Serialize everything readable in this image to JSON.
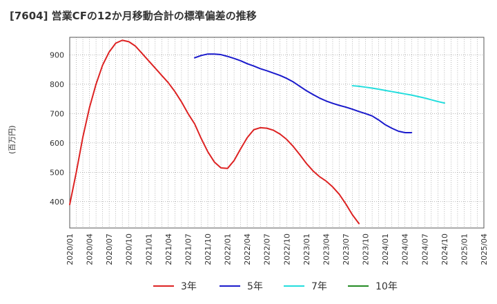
{
  "title": "[7604]  営業CFの12か月移動合計の標準偏差の推移",
  "chart_data": {
    "type": "line",
    "title": "[7604]  営業CFの12か月移動合計の標準偏差の推移",
    "ylabel": "(百万円)",
    "xlabel": "",
    "ylim": [
      310,
      960
    ],
    "yticks": [
      400,
      500,
      600,
      700,
      800,
      900
    ],
    "xticks": [
      "2020/01",
      "2020/04",
      "2020/07",
      "2020/10",
      "2021/01",
      "2021/04",
      "2021/07",
      "2021/10",
      "2022/01",
      "2022/04",
      "2022/07",
      "2022/10",
      "2023/01",
      "2023/04",
      "2023/07",
      "2023/10",
      "2024/01",
      "2024/04",
      "2024/07",
      "2024/10",
      "2025/01",
      "2025/04"
    ],
    "grid": true,
    "legend_position": "bottom",
    "series": [
      {
        "name": "3年",
        "color": "#dd2222",
        "start": "2020/01",
        "values": [
          390,
          500,
          620,
          720,
          800,
          865,
          910,
          940,
          950,
          945,
          930,
          905,
          880,
          855,
          830,
          805,
          775,
          740,
          700,
          665,
          615,
          570,
          535,
          515,
          513,
          540,
          580,
          618,
          645,
          652,
          650,
          643,
          630,
          612,
          588,
          560,
          530,
          505,
          485,
          470,
          450,
          425,
          392,
          355,
          325
        ]
      },
      {
        "name": "5年",
        "color": "#1a1acc",
        "start": "2021/08",
        "values": [
          890,
          898,
          903,
          903,
          901,
          895,
          888,
          880,
          870,
          862,
          853,
          846,
          838,
          830,
          820,
          808,
          793,
          778,
          765,
          753,
          743,
          735,
          728,
          722,
          715,
          707,
          700,
          692,
          678,
          662,
          650,
          640,
          635,
          635
        ]
      },
      {
        "name": "7年",
        "color": "#22dddd",
        "start": "2023/08",
        "values": [
          795,
          793,
          790,
          787,
          783,
          779,
          775,
          771,
          767,
          763,
          758,
          753,
          747,
          741,
          736
        ]
      },
      {
        "name": "10年",
        "color": "#228b22",
        "start": "",
        "values": []
      }
    ]
  }
}
